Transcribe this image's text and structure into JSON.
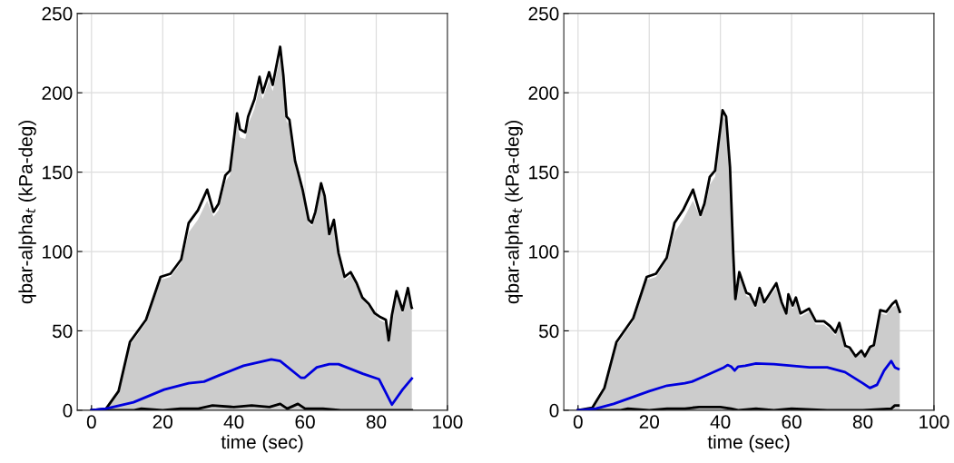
{
  "chart_data": [
    {
      "type": "line",
      "xlabel": "time (sec)",
      "ylabel": "qbar-alpha$_{t}$ (kPa-deg)",
      "xlim": [
        -4,
        100
      ],
      "ylim": [
        0,
        250
      ],
      "xticks": [
        0,
        20,
        40,
        60,
        80,
        100
      ],
      "yticks": [
        0,
        50,
        100,
        150,
        200,
        250
      ],
      "grid": true,
      "series": [
        {
          "type": "area",
          "color": "#cccccc",
          "x": [
            0,
            4.1,
            7.6,
            10.8,
            15.3,
            19.4,
            22.2,
            25.2,
            27.3,
            29.9,
            32.5,
            34.3,
            35.7,
            37.6,
            38.9,
            40.9,
            41.7,
            43.2,
            44.0,
            45.8,
            47.2,
            48.1,
            49.9,
            50.9,
            53.0,
            53.9,
            54.8,
            55.6,
            57.2,
            57.8,
            59.3,
            61.0,
            61.9,
            62.9,
            63.8,
            64.5,
            65.5,
            66.8,
            68.1,
            69.4,
            71.1,
            72.8,
            74.5,
            76.1,
            77.9,
            79.6,
            80.9,
            82.7,
            83.5,
            84.4,
            85.7,
            87.4,
            88.9,
            89.9,
            90
          ],
          "values": [
            0,
            1,
            11,
            41,
            55,
            82,
            84,
            93,
            112,
            120,
            132,
            122,
            126,
            144,
            148,
            180,
            172,
            171,
            180,
            190,
            204,
            196,
            208,
            201,
            222,
            206,
            182,
            180,
            154,
            149,
            136,
            118,
            116,
            122,
            132,
            140,
            132,
            109,
            117,
            97,
            82,
            85,
            78,
            70,
            65,
            60,
            57,
            55,
            44,
            58,
            72,
            61,
            74,
            63,
            62
          ]
        },
        {
          "color": "#000000",
          "x": [
            0,
            4.1,
            7.6,
            10.8,
            15.3,
            19.4,
            22.2,
            25.2,
            27.3,
            29.9,
            32.5,
            34.3,
            35.7,
            37.6,
            38.9,
            40.9,
            41.7,
            43.2,
            44.0,
            45.8,
            47.2,
            48.1,
            49.9,
            50.9,
            53.0,
            53.9,
            54.8,
            55.6,
            57.2,
            57.8,
            59.3,
            61.0,
            61.9,
            62.9,
            63.8,
            64.5,
            65.5,
            66.8,
            68.1,
            69.4,
            71.1,
            72.8,
            74.5,
            76.1,
            77.9,
            79.6,
            80.9,
            82.7,
            83.5,
            84.4,
            85.7,
            87.4,
            88.9,
            89.9,
            90
          ],
          "values": [
            0,
            1,
            12,
            43,
            57,
            84,
            86,
            95,
            118,
            126,
            139,
            125,
            130,
            148,
            151,
            187,
            177,
            175,
            185,
            196,
            210,
            200,
            213,
            205,
            229,
            211,
            185,
            183,
            157,
            152,
            139,
            120,
            118,
            125,
            135,
            143,
            135,
            111,
            120,
            99,
            84,
            87,
            80,
            71,
            67,
            61,
            59,
            57,
            44,
            60,
            75,
            63,
            77,
            65,
            64.5
          ]
        },
        {
          "color": "#000000",
          "x": [
            0,
            5,
            12,
            14,
            20,
            25,
            30,
            34,
            40,
            45,
            50,
            53,
            55,
            58,
            60,
            65,
            70,
            80,
            90
          ],
          "values": [
            0,
            0,
            0,
            1,
            0,
            1,
            1,
            3,
            2,
            3,
            2,
            4,
            1,
            4,
            1,
            1,
            0,
            0,
            0
          ]
        },
        {
          "color": "#0000dd",
          "x": [
            0,
            4.1,
            11.8,
            20.4,
            27.3,
            31.6,
            35.9,
            42.7,
            50.5,
            53,
            58.8,
            59.9,
            63.3,
            66.8,
            69.4,
            76.2,
            80.8,
            84.4,
            87.4,
            90
          ],
          "values": [
            0,
            1,
            5,
            13,
            17,
            18,
            22,
            28,
            32,
            31,
            20.5,
            20.5,
            27,
            29,
            29,
            23,
            19.5,
            3.5,
            13,
            20
          ]
        }
      ]
    },
    {
      "type": "line",
      "xlabel": "time (sec)",
      "ylabel": "qbar-alpha$_{t}$ (kPa-deg)",
      "xlim": [
        -4,
        100
      ],
      "ylim": [
        0,
        250
      ],
      "xticks": [
        0,
        20,
        40,
        60,
        80,
        100
      ],
      "yticks": [
        0,
        50,
        100,
        150,
        200,
        250
      ],
      "grid": true,
      "series": [
        {
          "type": "area",
          "color": "#cccccc",
          "x": [
            0,
            4,
            7.4,
            10.8,
            15.5,
            19.3,
            21.9,
            24.9,
            27.1,
            29.5,
            32.3,
            34.4,
            35.5,
            37,
            38.5,
            40.6,
            41.6,
            42.7,
            43.6,
            44.2,
            45.3,
            47.3,
            48.3,
            49.8,
            51,
            52.3,
            54,
            55.7,
            57.2,
            58.5,
            59.1,
            60.3,
            61.2,
            62.5,
            64.9,
            66.8,
            69.1,
            70.8,
            72.3,
            73.4,
            75.1,
            76.3,
            78,
            79.6,
            80.6,
            82.1,
            83.1,
            84.9,
            86.6,
            88.3,
            89.3,
            90.4
          ],
          "values": [
            0,
            1,
            13,
            41,
            56,
            82,
            84,
            94,
            112,
            120,
            132,
            121,
            126,
            142,
            147,
            185,
            182,
            151,
            98,
            69,
            84,
            72,
            71,
            64,
            74,
            66,
            72,
            77,
            66,
            60,
            70,
            64,
            68,
            59,
            62,
            54,
            54,
            51,
            47,
            53,
            39,
            38,
            33,
            36,
            33,
            39,
            40,
            61,
            60,
            65,
            66,
            60
          ]
        },
        {
          "color": "#000000",
          "x": [
            0,
            4,
            7.4,
            10.8,
            15.5,
            19.3,
            21.9,
            24.9,
            27.1,
            29.5,
            32.3,
            34.4,
            35.5,
            37,
            38.5,
            40.6,
            41.6,
            42.7,
            43.6,
            44.2,
            45.3,
            47.3,
            48.3,
            49.8,
            51,
            52.3,
            54,
            55.7,
            57.2,
            58.5,
            59.1,
            60.3,
            61.2,
            62.5,
            64.9,
            66.8,
            69.1,
            70.8,
            72.3,
            73.4,
            75.1,
            76.3,
            78,
            79.6,
            80.6,
            82.1,
            83.1,
            84.9,
            86.6,
            88.3,
            89.3,
            90.4
          ],
          "values": [
            0,
            1.5,
            14,
            43,
            58,
            84,
            86,
            96,
            118,
            126,
            139,
            123,
            130,
            147,
            151,
            189,
            185,
            153,
            99,
            70,
            87,
            74,
            73,
            66,
            77,
            68,
            74,
            80,
            68,
            61,
            73,
            66,
            71,
            61,
            64,
            56,
            56,
            53,
            49,
            55,
            40.5,
            39.5,
            34,
            37.5,
            34,
            40,
            41,
            63,
            62,
            67,
            69,
            62
          ]
        },
        {
          "color": "#000000",
          "x": [
            0,
            5,
            12,
            14,
            20,
            25,
            30,
            34,
            40,
            43,
            45,
            50,
            55,
            60,
            70,
            80,
            88,
            89,
            90
          ],
          "values": [
            0,
            0,
            0,
            1,
            0,
            1,
            1,
            2,
            2,
            1,
            0,
            1,
            0,
            1,
            0,
            0,
            1,
            3,
            3
          ]
        },
        {
          "color": "#0000dd",
          "x": [
            0,
            5,
            10,
            15,
            20,
            25,
            30,
            32,
            35,
            38,
            41,
            42,
            43,
            44,
            45,
            47,
            50,
            55,
            60,
            65,
            70,
            75,
            80,
            82,
            84,
            86,
            88,
            89,
            90
          ],
          "values": [
            0,
            1,
            4,
            8,
            12,
            15.5,
            17,
            18,
            21,
            24,
            27,
            28.5,
            27.5,
            25,
            27.5,
            28,
            29.5,
            29,
            28,
            27,
            27,
            24,
            17,
            14,
            16,
            25,
            31,
            27,
            26
          ]
        }
      ]
    }
  ]
}
